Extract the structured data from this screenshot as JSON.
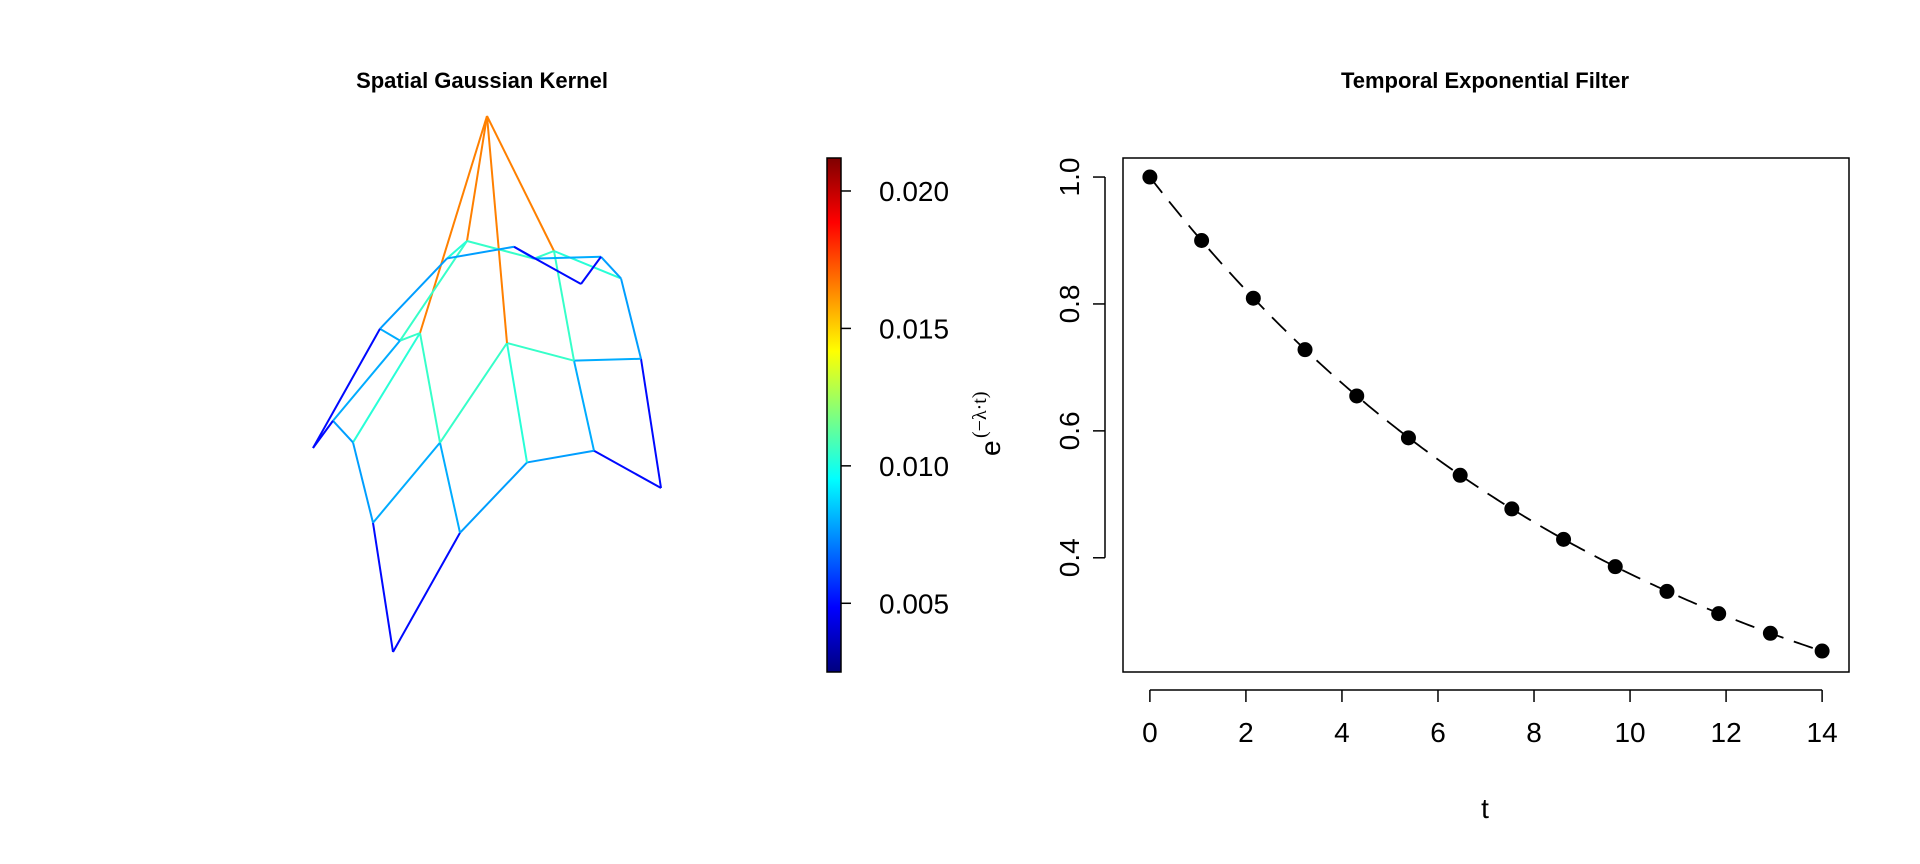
{
  "chart_data": [
    {
      "type": "surface",
      "title": "Spatial Gaussian Kernel",
      "surface_kind": "wireframe-perspective",
      "colormap": [
        "#00007F",
        "#0000FF",
        "#007FFF",
        "#00FFFF",
        "#7FFF7F",
        "#FFFF00",
        "#FF7F00",
        "#FF0000",
        "#7F0000"
      ],
      "grid_values": [
        [
          0.003,
          0.007,
          0.0085,
          0.007,
          0.003
        ],
        [
          0.007,
          0.009,
          0.012,
          0.009,
          0.007
        ],
        [
          0.0085,
          0.012,
          0.021,
          0.012,
          0.0085
        ],
        [
          0.007,
          0.009,
          0.012,
          0.009,
          0.007
        ],
        [
          0.003,
          0.007,
          0.0085,
          0.007,
          0.003
        ]
      ],
      "colorbar": {
        "ticks": [
          "0.005",
          "0.010",
          "0.015",
          "0.020"
        ],
        "tick_values": [
          0.005,
          0.01,
          0.015,
          0.02
        ],
        "range": [
          0.0025,
          0.0212
        ]
      },
      "colorbar_label": {
        "base": "e",
        "exponent": "(−λ·t)"
      }
    },
    {
      "type": "line",
      "title": "Temporal Exponential Filter",
      "xlabel": "t",
      "ylabel": "",
      "line_style": "dashed",
      "marker": "filled-circle",
      "x": [
        0,
        1.077,
        2.154,
        3.231,
        4.308,
        5.385,
        6.462,
        7.538,
        8.615,
        9.692,
        10.769,
        11.846,
        12.923,
        14
      ],
      "values": [
        1.0,
        0.9,
        0.809,
        0.728,
        0.655,
        0.589,
        0.53,
        0.477,
        0.429,
        0.386,
        0.347,
        0.312,
        0.281,
        0.253
      ],
      "xlim": [
        -0.56,
        14.56
      ],
      "ylim": [
        0.22,
        1.03
      ],
      "xticks": [
        "0",
        "2",
        "4",
        "6",
        "8",
        "10",
        "12",
        "14"
      ],
      "xtick_values": [
        0,
        2,
        4,
        6,
        8,
        10,
        12,
        14
      ],
      "yticks": [
        "0.4",
        "0.6",
        "0.8",
        "1.0"
      ],
      "ytick_values": [
        0.4,
        0.6,
        0.8,
        1.0
      ]
    }
  ]
}
